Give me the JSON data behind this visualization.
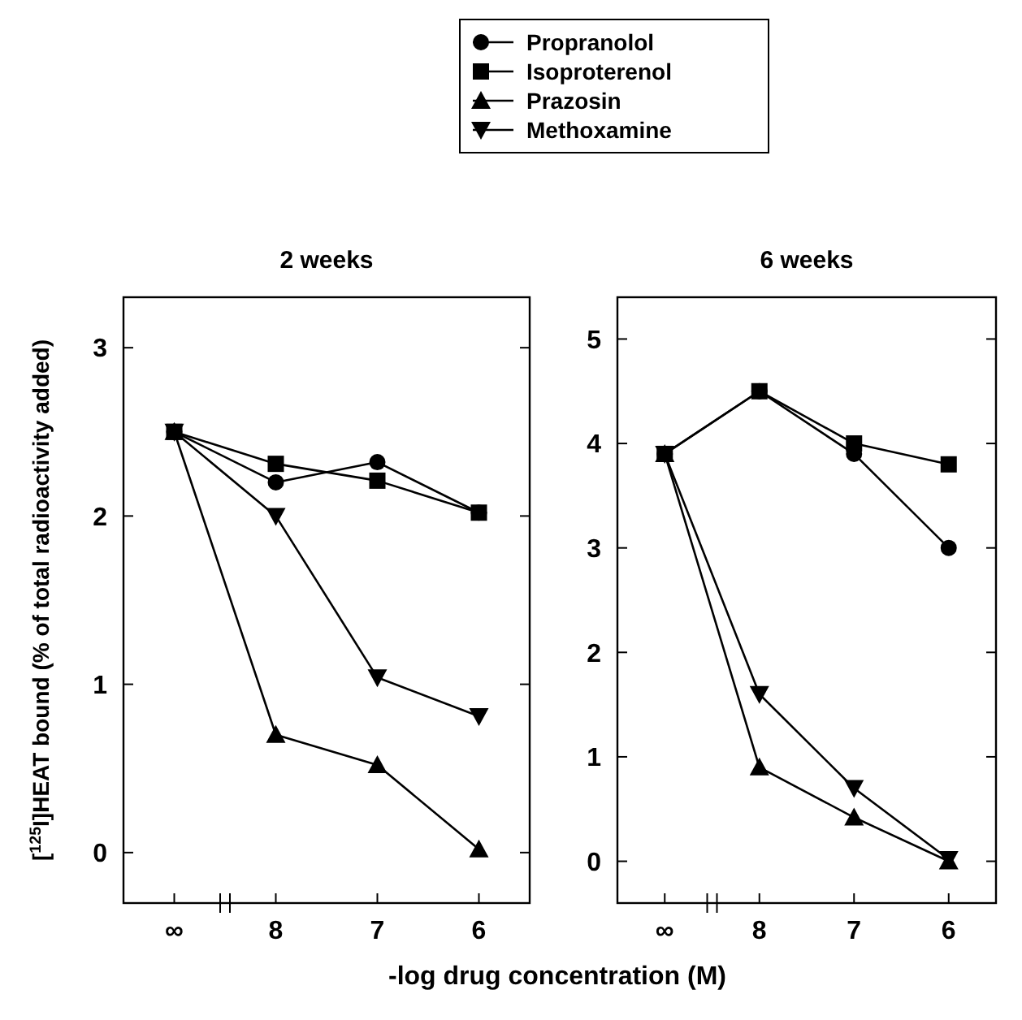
{
  "chart_data": [
    {
      "type": "line",
      "title": "2 weeks",
      "xlabel": "-log drug concentration (M)",
      "ylabel": "[$^{125}$I]HEAT bound (% of total radioactivity added)",
      "categories": [
        "∞",
        "8",
        "7",
        "6"
      ],
      "ylim": [
        -0.3,
        3.3
      ],
      "yticks": [
        0,
        1,
        2,
        3
      ],
      "legend": "top",
      "grid": false,
      "series": [
        {
          "name": "Propranolol",
          "color": "#000000",
          "marker": "circle",
          "values": [
            2.5,
            2.2,
            2.32,
            2.02
          ]
        },
        {
          "name": "Isoproterenol",
          "color": "#000000",
          "marker": "square",
          "values": [
            2.5,
            2.31,
            2.21,
            2.02
          ]
        },
        {
          "name": "Prazosin",
          "color": "#000000",
          "marker": "triangle",
          "values": [
            2.5,
            0.7,
            0.52,
            0.02
          ]
        },
        {
          "name": "Methoxamine",
          "color": "#000000",
          "marker": "triangle-down",
          "values": [
            2.5,
            2.0,
            1.04,
            0.81
          ]
        }
      ]
    },
    {
      "type": "line",
      "title": "6 weeks",
      "categories": [
        "∞",
        "8",
        "7",
        "6"
      ],
      "ylim": [
        -0.4,
        5.4
      ],
      "yticks": [
        0,
        1,
        2,
        3,
        4,
        5
      ],
      "grid": false,
      "series": [
        {
          "color": "#000000",
          "marker": "circle",
          "values": [
            3.9,
            4.5,
            3.9,
            3.0
          ]
        },
        {
          "color": "#000000",
          "marker": "square",
          "values": [
            3.9,
            4.5,
            4.0,
            3.8
          ]
        },
        {
          "color": "#000000",
          "marker": "triangle",
          "values": [
            3.9,
            0.9,
            0.42,
            0.0
          ]
        },
        {
          "color": "#000000",
          "marker": "triangle-down",
          "values": [
            3.9,
            1.6,
            0.7,
            0.02
          ]
        }
      ]
    }
  ]
}
